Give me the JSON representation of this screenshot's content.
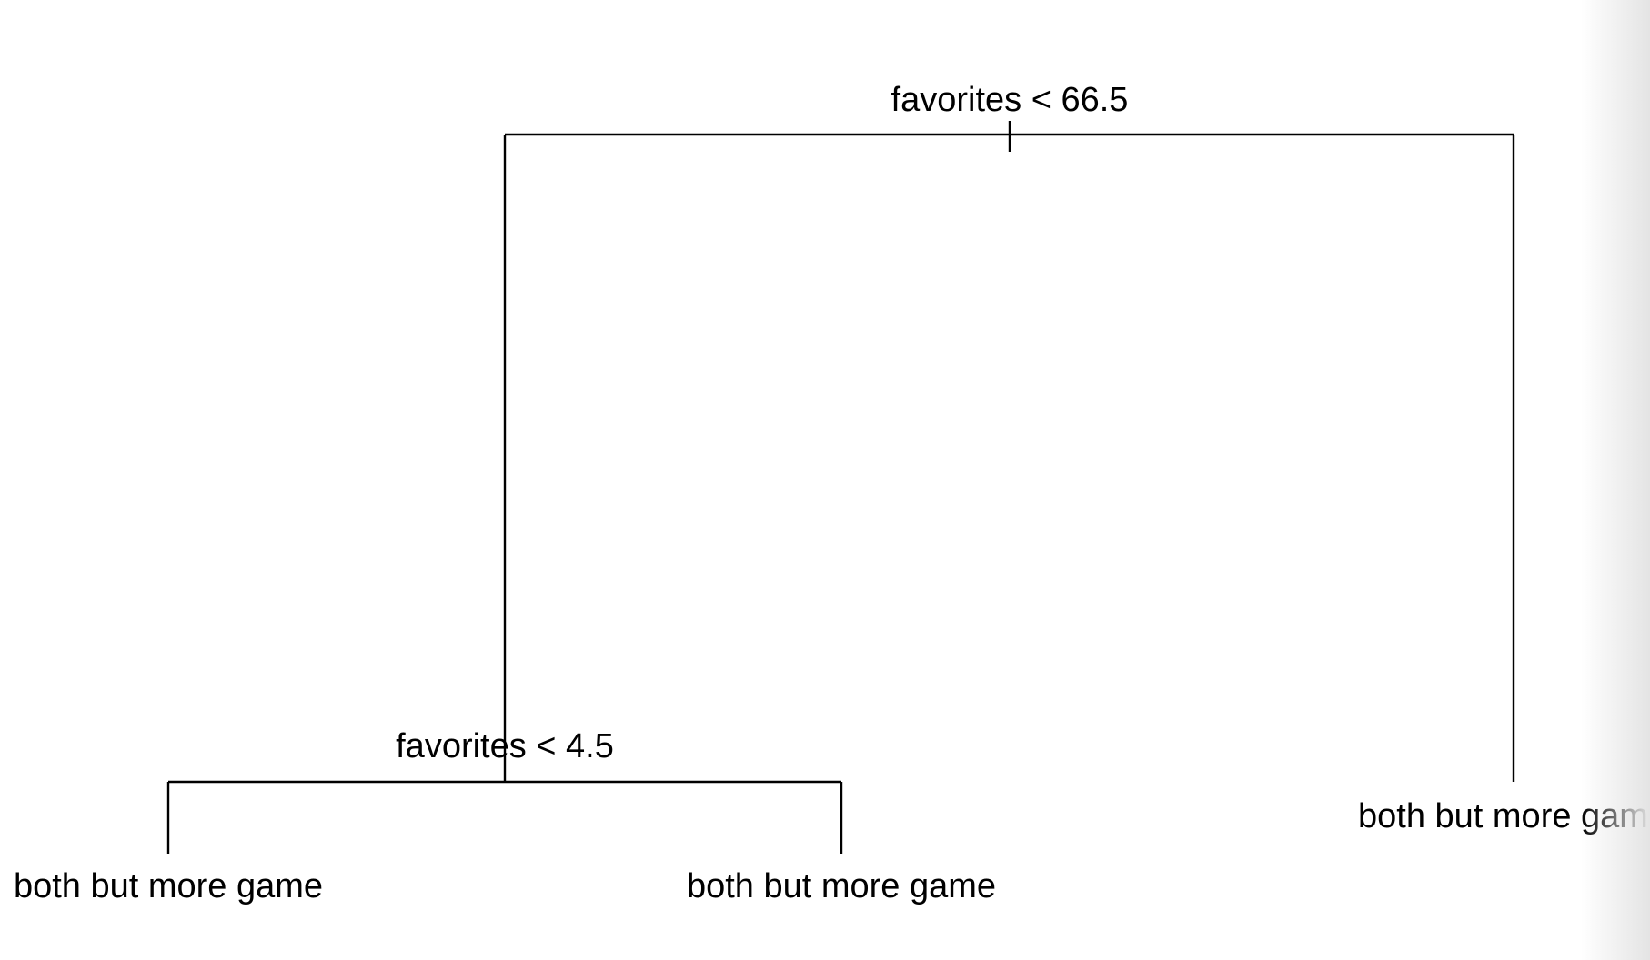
{
  "tree": {
    "root": {
      "split_label": "favorites < 66.5",
      "left": {
        "split_label": "favorites < 4.5",
        "left_leaf": "both but more game",
        "right_leaf": "both but more game"
      },
      "right_leaf": "both but more gam"
    }
  }
}
